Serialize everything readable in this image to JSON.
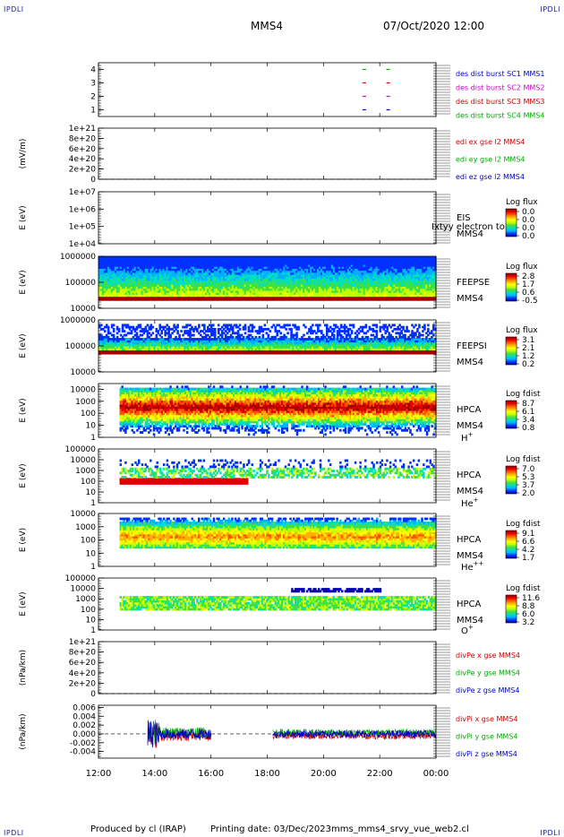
{
  "header": {
    "corner_left_top": "IPDLI",
    "corner_right_top": "IPDLI",
    "corner_left_bottom": "IPDLI",
    "corner_right_bottom": "IPDLI",
    "spacecraft": "MMS4",
    "datetime": "07/Oct/2020 12:00"
  },
  "footer": {
    "produced": "Produced by cl (IRAP)",
    "printing": "Printing date: 03/Dec/2023",
    "file": "mms_mms4_srvy_vue_web2.cl"
  },
  "chart_data": {
    "type": "stacked-timeseries",
    "time_axis": {
      "ticks": [
        "12:00",
        "14:00",
        "16:00",
        "18:00",
        "20:00",
        "22:00",
        "00:00"
      ],
      "range_hours": [
        12,
        24
      ]
    },
    "panels": [
      {
        "id": "burst",
        "type": "scatter",
        "ylabel": "",
        "yticks": [
          "1",
          "2",
          "3",
          "4"
        ],
        "ylim": [
          0.5,
          4.5
        ],
        "series": [
          {
            "name": "des dist burst SC1 MMS1",
            "color": "#0000cc",
            "y": 1,
            "times": [
              21.45,
              22.3
            ]
          },
          {
            "name": "des dist burst SC2 MMS2",
            "color": "#cc00cc",
            "y": 2,
            "times": [
              21.45,
              22.3
            ]
          },
          {
            "name": "des dist burst SC3 MMS3",
            "color": "#cc0000",
            "y": 3,
            "times": [
              21.45,
              22.3
            ]
          },
          {
            "name": "des dist burst SC4 MMS4",
            "color": "#00aa00",
            "y": 4,
            "times": [
              21.45,
              22.3
            ]
          }
        ]
      },
      {
        "id": "edi",
        "type": "line",
        "ylabel": "(mV/m)",
        "yticks": [
          "0",
          "2e+20",
          "4e+20",
          "6e+20",
          "8e+20",
          "1e+21"
        ],
        "ylim": [
          0,
          1e+21
        ],
        "dashed_zero": true,
        "series": [
          {
            "name": "edi ex gse l2 MMS4",
            "color": "#cc0000"
          },
          {
            "name": "edi ey gse l2 MMS4",
            "color": "#00aa00"
          },
          {
            "name": "edi ez gse l2 MMS4",
            "color": "#0000cc"
          }
        ]
      },
      {
        "id": "eis",
        "type": "heatmap",
        "ylabel": "E (eV)",
        "yticks": [
          "1e+04",
          "1e+05",
          "1e+06",
          "1e+07"
        ],
        "ylim": [
          10000.0,
          10000000.0
        ],
        "instrument": "EIS",
        "sc": "MMS4",
        "overlay_text": "Ixtyy electron to",
        "colorbar": {
          "title": "Log flux",
          "ticks": [
            "0.0",
            "0.0",
            "0.0",
            "0.0"
          ]
        },
        "data": "empty"
      },
      {
        "id": "feepse",
        "type": "heatmap",
        "ylabel": "E (eV)",
        "yticks": [
          "10000",
          "100000",
          "1000000"
        ],
        "ylim": [
          10000,
          1000000
        ],
        "instrument": "FEEPSE",
        "sc": "MMS4",
        "colorbar": {
          "title": "Log flux",
          "ticks": [
            "2.8",
            "1.7",
            "0.6",
            "-0.5"
          ]
        },
        "time_range": [
          12.0,
          24.0
        ]
      },
      {
        "id": "feepsi",
        "type": "heatmap",
        "ylabel": "E (eV)",
        "yticks": [
          "10000",
          "100000",
          "1000000"
        ],
        "ylim": [
          10000,
          1000000
        ],
        "instrument": "FEEPSI",
        "sc": "MMS4",
        "colorbar": {
          "title": "Log flux",
          "ticks": [
            "3.1",
            "2.1",
            "1.2",
            "0.2"
          ]
        },
        "time_range": [
          12.0,
          24.0
        ]
      },
      {
        "id": "hpca_h",
        "type": "heatmap",
        "ylabel": "E (eV)",
        "yticks": [
          "1",
          "10",
          "100",
          "1000",
          "10000"
        ],
        "ylim": [
          1,
          30000
        ],
        "instrument": "HPCA",
        "sc": "MMS4",
        "species": "H",
        "species_sup": "+",
        "colorbar": {
          "title": "Log fdist",
          "ticks": [
            "8.7",
            "6.1",
            "3.4",
            "0.8"
          ]
        },
        "time_range": [
          12.75,
          24.0
        ]
      },
      {
        "id": "hpca_he1",
        "type": "heatmap",
        "ylabel": "E (eV)",
        "yticks": [
          "1",
          "10",
          "100",
          "1000",
          "10000",
          "100000"
        ],
        "ylim": [
          1,
          100000
        ],
        "instrument": "HPCA",
        "sc": "MMS4",
        "species": "He",
        "species_sup": "+",
        "colorbar": {
          "title": "Log fdist",
          "ticks": [
            "7.0",
            "5.3",
            "3.7",
            "2.0"
          ]
        },
        "time_range": [
          12.75,
          24.0
        ]
      },
      {
        "id": "hpca_he2",
        "type": "heatmap",
        "ylabel": "E (eV)",
        "yticks": [
          "1",
          "10",
          "100",
          "1000",
          "10000"
        ],
        "ylim": [
          1,
          10000
        ],
        "instrument": "HPCA",
        "sc": "MMS4",
        "species": "He",
        "species_sup": "++",
        "colorbar": {
          "title": "Log fdist",
          "ticks": [
            "9.1",
            "6.6",
            "4.2",
            "1.7"
          ]
        },
        "time_range": [
          12.75,
          24.0
        ]
      },
      {
        "id": "hpca_o",
        "type": "heatmap",
        "ylabel": "E (eV)",
        "yticks": [
          "1",
          "10",
          "100",
          "1000",
          "10000",
          "100000"
        ],
        "ylim": [
          1,
          100000
        ],
        "instrument": "HPCA",
        "sc": "MMS4",
        "species": "O",
        "species_sup": "+",
        "colorbar": {
          "title": "Log fdist",
          "ticks": [
            "11.6",
            "8.8",
            "6.0",
            "3.2"
          ]
        },
        "time_range": [
          12.75,
          24.0
        ]
      },
      {
        "id": "divpe",
        "type": "line",
        "ylabel": "(nPa/km)",
        "yticks": [
          "0",
          "2e+20",
          "4e+20",
          "6e+20",
          "8e+20",
          "1e+21"
        ],
        "ylim": [
          0,
          1e+21
        ],
        "dashed_zero": true,
        "series": [
          {
            "name": "divPe x gse MMS4",
            "color": "#cc0000"
          },
          {
            "name": "divPe y gse MMS4",
            "color": "#00aa00"
          },
          {
            "name": "divPe z gse MMS4",
            "color": "#0000cc"
          }
        ]
      },
      {
        "id": "divpi",
        "type": "line",
        "ylabel": "(nPa/km)",
        "yticks": [
          "-0.004",
          "-0.002",
          "0.000",
          "0.002",
          "0.004",
          "0.006"
        ],
        "ylim": [
          -0.0055,
          0.0065
        ],
        "dashed_zero": true,
        "series": [
          {
            "name": "divPi x gse MMS4",
            "color": "#cc0000"
          },
          {
            "name": "divPi y gse MMS4",
            "color": "#00aa00"
          },
          {
            "name": "divPi z gse MMS4",
            "color": "#0000cc"
          }
        ],
        "segments": [
          [
            13.75,
            16.0
          ],
          [
            18.2,
            24.0
          ]
        ]
      }
    ]
  }
}
